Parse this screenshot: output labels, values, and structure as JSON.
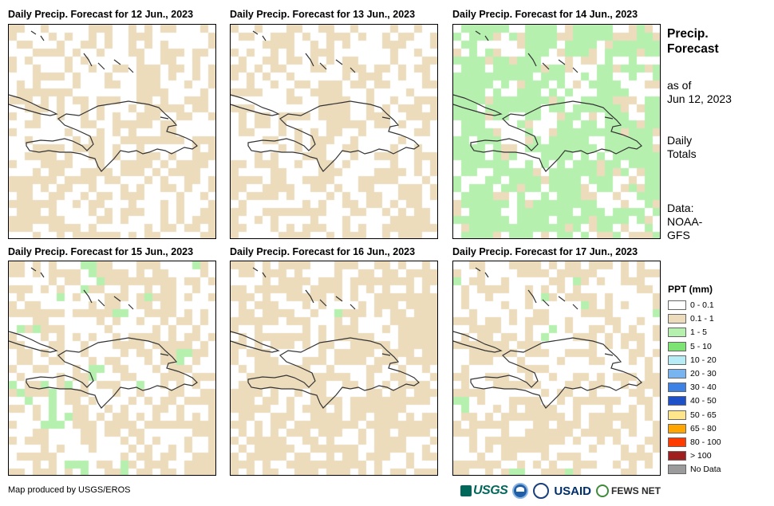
{
  "maps": [
    {
      "title": "Daily Precip. Forecast for 12 Jun., 2023",
      "seed": 12,
      "prob": {
        "tan": 0.42,
        "green": 0.04,
        "dgreen": 0.0,
        "cyan": 0.0
      }
    },
    {
      "title": "Daily Precip. Forecast for 13 Jun., 2023",
      "seed": 13,
      "prob": {
        "tan": 0.4,
        "green": 0.2,
        "dgreen": 0.04,
        "cyan": 0.01
      }
    },
    {
      "title": "Daily Precip. Forecast for 14 Jun., 2023",
      "seed": 14,
      "prob": {
        "tan": 0.18,
        "green": 0.55,
        "dgreen": 0.06,
        "cyan": 0.02
      }
    },
    {
      "title": "Daily Precip. Forecast for 15 Jun., 2023",
      "seed": 15,
      "prob": {
        "tan": 0.38,
        "green": 0.32,
        "dgreen": 0.05,
        "cyan": 0.01
      }
    },
    {
      "title": "Daily Precip. Forecast for 16 Jun., 2023",
      "seed": 16,
      "prob": {
        "tan": 0.52,
        "green": 0.24,
        "dgreen": 0.02,
        "cyan": 0.0
      }
    },
    {
      "title": "Daily Precip. Forecast for 17 Jun., 2023",
      "seed": 17,
      "prob": {
        "tan": 0.38,
        "green": 0.28,
        "dgreen": 0.02,
        "cyan": 0.01
      }
    }
  ],
  "side": {
    "title_line1": "Precip.",
    "title_line2": "Forecast",
    "asof_line1": "as of",
    "asof_line2": "Jun 12, 2023",
    "totals_line1": "Daily",
    "totals_line2": "Totals",
    "data_line1": "Data:",
    "data_line2": "NOAA-",
    "data_line3": "GFS"
  },
  "legend": {
    "title": "PPT (mm)",
    "items": [
      {
        "label": "0 - 0.1",
        "color": "#ffffff"
      },
      {
        "label": "0.1 - 1",
        "color": "#ecdcbc"
      },
      {
        "label": "1 - 5",
        "color": "#b6f0ae"
      },
      {
        "label": "5 - 10",
        "color": "#7de373"
      },
      {
        "label": "10 - 20",
        "color": "#b6ecf6"
      },
      {
        "label": "20 - 30",
        "color": "#78b4f0"
      },
      {
        "label": "30 - 40",
        "color": "#3c82e6"
      },
      {
        "label": "40 - 50",
        "color": "#1e50c8"
      },
      {
        "label": "50 - 65",
        "color": "#ffe68c"
      },
      {
        "label": "65 - 80",
        "color": "#ffa500"
      },
      {
        "label": "80 - 100",
        "color": "#ff3c00"
      },
      {
        "label": "> 100",
        "color": "#a01e1e"
      },
      {
        "label": "No Data",
        "color": "#9b9b9b"
      }
    ]
  },
  "credit": "Map produced by USGS/EROS",
  "logos": {
    "usgs": "USGS",
    "usaid": "USAID",
    "fews": "FEWS NET"
  }
}
